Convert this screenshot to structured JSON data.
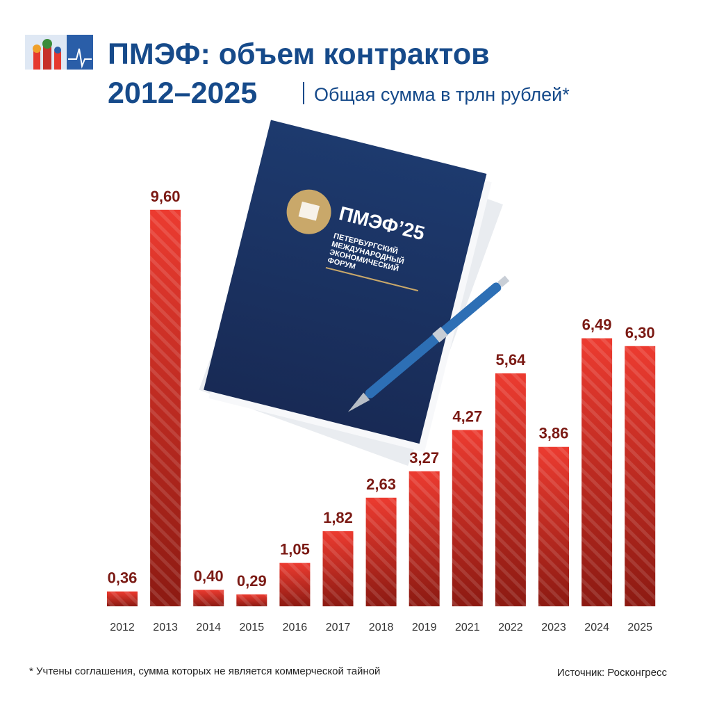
{
  "chart_data": {
    "type": "bar",
    "title": [
      "ПМЭФ: объем контрактов",
      "2012–2025"
    ],
    "subtitle": "Общая сумма в трлн рублей*",
    "categories": [
      "2012",
      "2013",
      "2014",
      "2015",
      "2016",
      "2017",
      "2018",
      "2019",
      "2021",
      "2022",
      "2023",
      "2024",
      "2025"
    ],
    "values": [
      0.36,
      9.6,
      0.4,
      0.29,
      1.05,
      1.82,
      2.63,
      3.27,
      4.27,
      5.64,
      3.86,
      6.49,
      6.3
    ],
    "value_labels": [
      "0,36",
      "9,60",
      "0,40",
      "0,29",
      "1,05",
      "1,82",
      "2,63",
      "3,27",
      "4,27",
      "5,64",
      "3,86",
      "6,49",
      "6,30"
    ],
    "color": "#ec3b30",
    "color_dark": "#8c1a12",
    "footnote": "* Учтены соглашения, сумма которых не является коммерческой тайной",
    "source": "Источник: Росконгресс",
    "illustration": {
      "logo": "ПМЭФ’25",
      "lines": [
        "ПЕТЕРБУРГСКИЙ",
        "МЕЖДУНАРОДНЫЙ",
        "ЭКОНОМИЧЕСКИЙ",
        "ФОРУМ"
      ]
    }
  }
}
